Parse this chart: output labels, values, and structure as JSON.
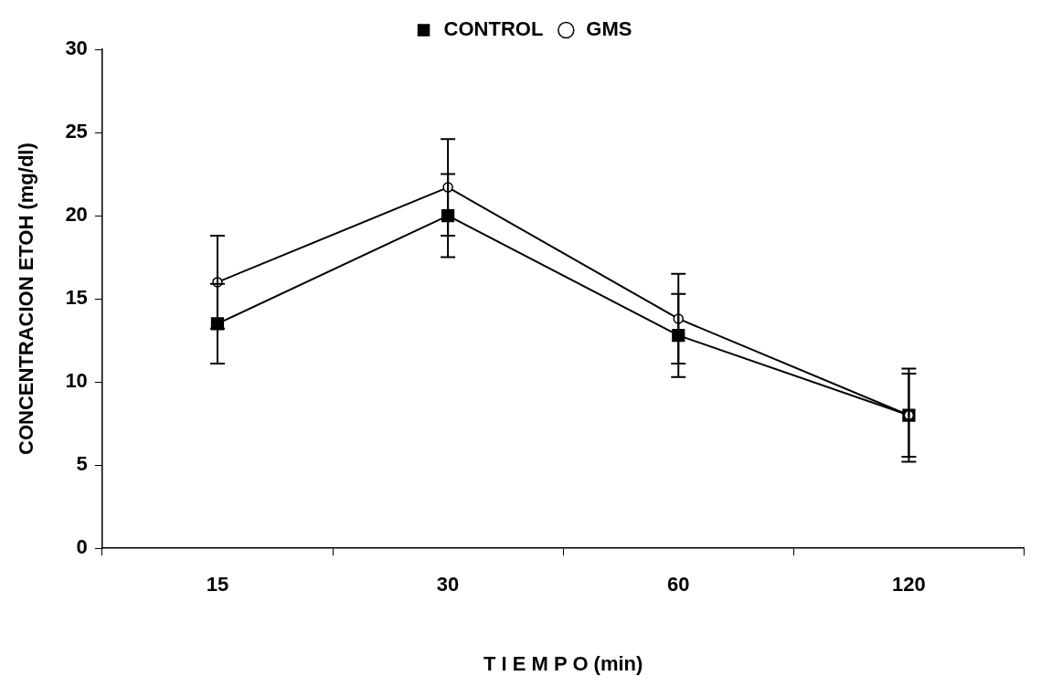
{
  "chart_data": {
    "type": "line",
    "xlabel": "T I E M P O (min)",
    "ylabel": "CONCENTRACION ETOH (mg/dl)",
    "categories": [
      "15",
      "30",
      "60",
      "120"
    ],
    "series": [
      {
        "name": "CONTROL",
        "color": "#000000",
        "marker": "square",
        "values": [
          13.5,
          20.0,
          12.8,
          8.0
        ],
        "errors": [
          2.4,
          2.5,
          2.5,
          2.5
        ]
      },
      {
        "name": "GMS",
        "color": "#000000",
        "marker": "circle",
        "values": [
          16.0,
          21.7,
          13.8,
          8.0
        ],
        "errors": [
          2.8,
          2.9,
          2.7,
          2.8
        ]
      }
    ],
    "ylim": [
      0,
      30
    ],
    "yticks": [
      0,
      5,
      10,
      15,
      20,
      25,
      30
    ],
    "grid": false,
    "legend": "top",
    "line_style": "solid"
  }
}
